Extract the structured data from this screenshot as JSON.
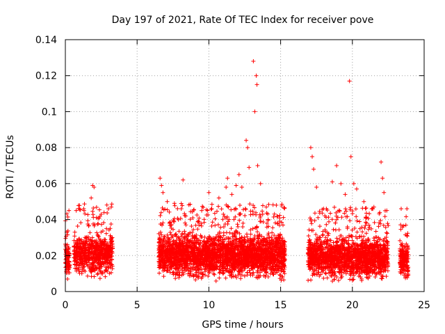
{
  "chart_data": {
    "type": "scatter",
    "title": "Day 197 of 2021, Rate Of TEC Index for receiver pove",
    "xlabel": "GPS time / hours",
    "ylabel": "ROTI / TECUs",
    "xlim": [
      0,
      25
    ],
    "ylim": [
      0,
      0.14
    ],
    "xticks": [
      0,
      5,
      10,
      15,
      20,
      25
    ],
    "xtick_labels": [
      "0",
      "5",
      "10",
      "15",
      "20",
      "25"
    ],
    "yticks": [
      0,
      0.02,
      0.04,
      0.06,
      0.08,
      0.1,
      0.12,
      0.14
    ],
    "ytick_labels": [
      "0",
      "0.02",
      "0.04",
      "0.06",
      "0.08",
      "0.1",
      "0.12",
      "0.14"
    ],
    "grid": true,
    "marker": "+",
    "color": "#ff0000",
    "series": [
      {
        "name": "ROTI",
        "segments": [
          {
            "x_range": [
              0.0,
              0.3
            ],
            "y_range": [
              0.005,
              0.03
            ],
            "density": 90
          },
          {
            "x_range": [
              0.6,
              3.3
            ],
            "y_range": [
              0.005,
              0.035
            ],
            "density": 650
          },
          {
            "x_range": [
              6.5,
              15.3
            ],
            "y_range": [
              0.004,
              0.035
            ],
            "density": 2600
          },
          {
            "x_range": [
              16.9,
              22.5
            ],
            "y_range": [
              0.004,
              0.033
            ],
            "density": 1600
          },
          {
            "x_range": [
              23.3,
              23.9
            ],
            "y_range": [
              0.006,
              0.028
            ],
            "density": 170
          }
        ],
        "peaks": [
          [
            0.1,
            0.033
          ],
          [
            0.25,
            0.045
          ],
          [
            1.3,
            0.045
          ],
          [
            1.8,
            0.052
          ],
          [
            1.9,
            0.059
          ],
          [
            2.0,
            0.058
          ],
          [
            2.5,
            0.043
          ],
          [
            3.0,
            0.046
          ],
          [
            3.2,
            0.047
          ],
          [
            6.6,
            0.063
          ],
          [
            6.7,
            0.059
          ],
          [
            6.8,
            0.055
          ],
          [
            7.1,
            0.05
          ],
          [
            7.6,
            0.049
          ],
          [
            8.2,
            0.062
          ],
          [
            9.5,
            0.045
          ],
          [
            10.0,
            0.055
          ],
          [
            10.2,
            0.046
          ],
          [
            10.7,
            0.052
          ],
          [
            11.2,
            0.058
          ],
          [
            11.3,
            0.063
          ],
          [
            11.6,
            0.054
          ],
          [
            11.9,
            0.059
          ],
          [
            12.1,
            0.065
          ],
          [
            12.3,
            0.058
          ],
          [
            12.6,
            0.084
          ],
          [
            12.7,
            0.08
          ],
          [
            12.8,
            0.069
          ],
          [
            13.1,
            0.128
          ],
          [
            13.3,
            0.12
          ],
          [
            13.35,
            0.115
          ],
          [
            13.2,
            0.1
          ],
          [
            13.4,
            0.07
          ],
          [
            13.6,
            0.06
          ],
          [
            14.0,
            0.047
          ],
          [
            14.7,
            0.048
          ],
          [
            17.1,
            0.08
          ],
          [
            17.2,
            0.075
          ],
          [
            17.3,
            0.068
          ],
          [
            17.5,
            0.058
          ],
          [
            18.0,
            0.046
          ],
          [
            18.6,
            0.061
          ],
          [
            18.9,
            0.07
          ],
          [
            19.2,
            0.06
          ],
          [
            19.5,
            0.054
          ],
          [
            19.8,
            0.117
          ],
          [
            19.9,
            0.075
          ],
          [
            20.1,
            0.06
          ],
          [
            20.3,
            0.057
          ],
          [
            20.8,
            0.05
          ],
          [
            21.5,
            0.047
          ],
          [
            22.0,
            0.072
          ],
          [
            22.1,
            0.063
          ],
          [
            22.2,
            0.055
          ],
          [
            22.4,
            0.045
          ],
          [
            23.4,
            0.046
          ],
          [
            23.8,
            0.046
          ]
        ]
      }
    ]
  }
}
